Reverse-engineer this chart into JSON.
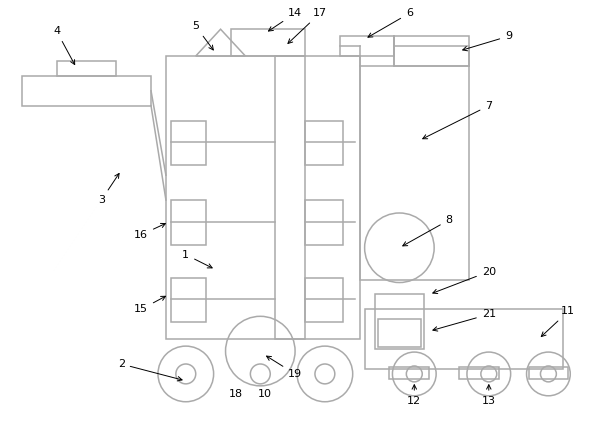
{
  "background_color": "#ffffff",
  "line_color": "#aaaaaa",
  "line_width": 1.1,
  "fig_width": 6.14,
  "fig_height": 4.23,
  "dpi": 100
}
